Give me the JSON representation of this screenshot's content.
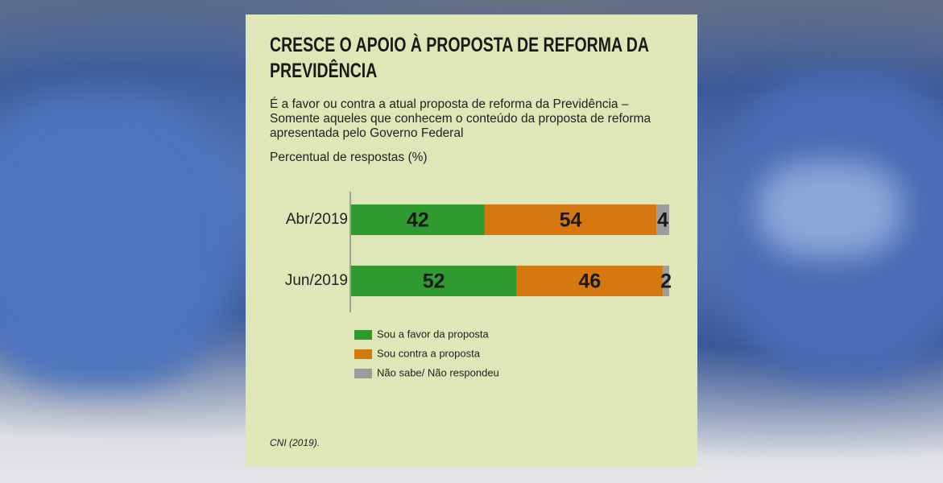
{
  "chart_data": {
    "type": "stacked-bar-horizontal",
    "title": "CRESCE O APOIO À PROPOSTA DE REFORMA DA PREVIDÊNCIA",
    "subtitle": "É a favor ou contra a atual proposta de reforma da Previdência – Somente aqueles que conhecem o conteúdo da proposta de reforma apresentada pelo Governo Federal",
    "axis_label": "Percentual de respostas (%)",
    "categories": [
      "Abr/2019",
      "Jun/2019"
    ],
    "series": [
      {
        "name": "Sou a favor da proposta",
        "color": "#2f9a30",
        "values": [
          42,
          52
        ]
      },
      {
        "name": "Sou contra a proposta",
        "color": "#d5780f",
        "values": [
          54,
          46
        ]
      },
      {
        "name": "Não sabe/ Não respondeu",
        "color": "#9d9d9d",
        "values": [
          4,
          2
        ]
      }
    ],
    "xlim": [
      0,
      100
    ],
    "source": "CNI (2019)."
  }
}
